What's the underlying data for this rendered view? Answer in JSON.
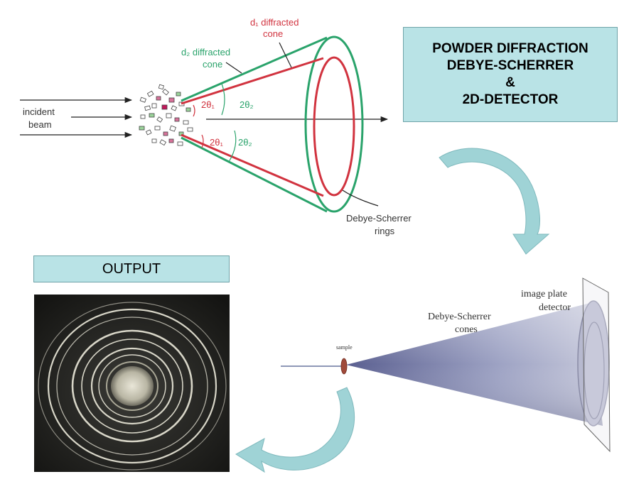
{
  "top_diagram": {
    "d1_label_line1": "d₁ diffracted",
    "d1_label_line2": "cone",
    "d2_label_line1": "d₂ diffracted",
    "d2_label_line2": "cone",
    "incident_line1": "incident",
    "incident_line2": "beam",
    "angle_2theta1": "2θ₁",
    "angle_2theta2": "2θ₂",
    "rings_line1": "Debye-Scherrer",
    "rings_line2": "rings",
    "colors": {
      "d1": "#d1333f",
      "d2": "#2aa36b"
    }
  },
  "title_box": {
    "line1": "POWDER DIFFRACTION",
    "line2": "DEBYE-SCHERRER",
    "line3": "&",
    "line4": "2D-DETECTOR"
  },
  "output_box": {
    "label": "OUTPUT"
  },
  "detector_diagram": {
    "sample_label": "sample",
    "cones_line1": "Debye-Scherrer",
    "cones_line2": "cones",
    "plate_line1": "image plate",
    "plate_line2": "detector"
  },
  "arrow_color": "#9fd3d6",
  "output_image": {
    "description_icon": "diffraction-rings-photo"
  }
}
